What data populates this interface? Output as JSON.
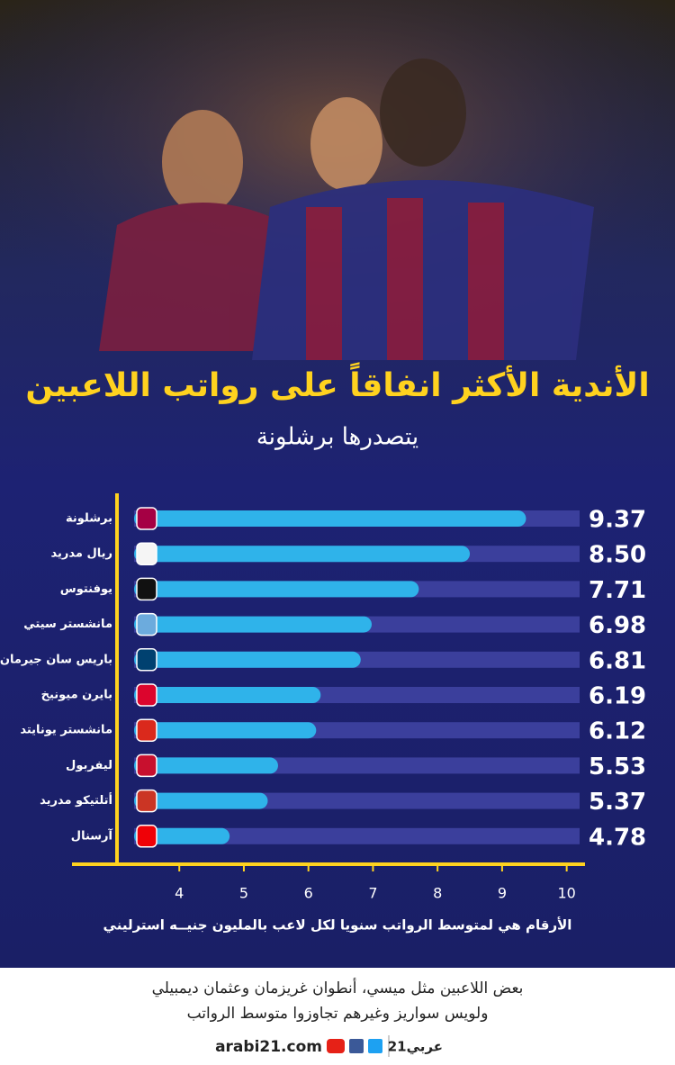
{
  "chart_data": {
    "type": "bar",
    "orientation": "horizontal",
    "title": "الأندية الأكثر انفاقاً على رواتب اللاعبين",
    "subtitle": "يتصدرها برشلونة",
    "categories": [
      "برشلونة",
      "ريال مدريد",
      "يوفنتوس",
      "مانشستر سيتي",
      "باريس سان جيرمان",
      "بايرن ميونيخ",
      "مانشستر يونايتد",
      "ليفربول",
      "أتلتيكو مدريد",
      "آرسنال"
    ],
    "values": [
      9.37,
      8.5,
      7.71,
      6.98,
      6.81,
      6.19,
      6.12,
      5.53,
      5.37,
      4.78
    ],
    "value_labels": [
      "9.37",
      "8.50",
      "7.71",
      "6.98",
      "6.81",
      "6.19",
      "6.12",
      "5.53",
      "5.37",
      "4.78"
    ],
    "color": "#2fb3ea",
    "track_color": "#3b3f9c",
    "xlim": [
      3.3,
      10.2
    ],
    "xticks": [
      4,
      5,
      6,
      7,
      8,
      9,
      10
    ],
    "xlabel": "الأرقام هي لمتوسط الرواتب سنويا لكل لاعب بالمليون جنيــه استرليني"
  },
  "footer": {
    "note": [
      "بعض اللاعبين مثل ميسي، أنطوان غريزمان وعثمان ديمبيلي",
      "ولويس سواريز وغيرهم تجاوزوا متوسط الرواتب"
    ],
    "site": "arabi21.com",
    "brand": "عربي21"
  }
}
